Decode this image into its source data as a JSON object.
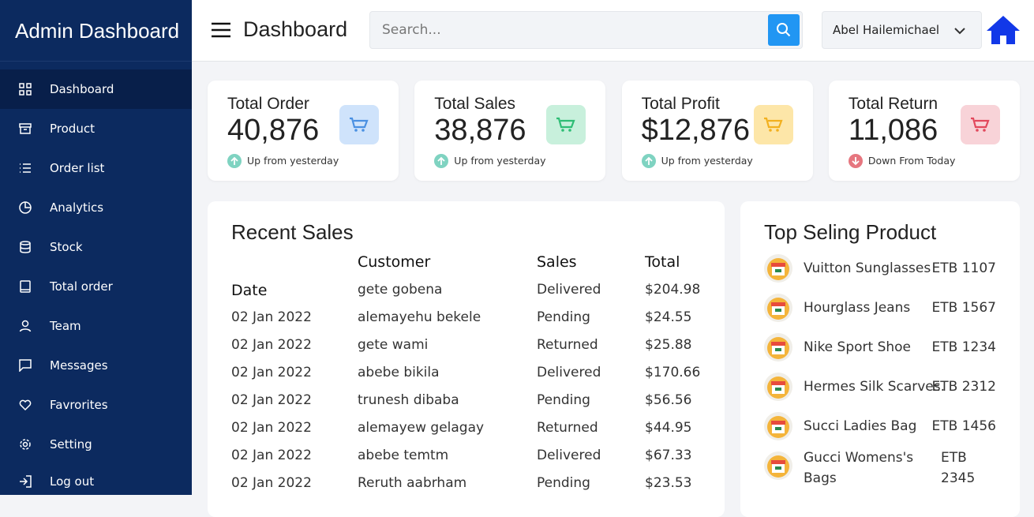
{
  "sidebar": {
    "brand": "Admin Dashboard",
    "items": [
      "Dashboard",
      "Product",
      "Order list",
      "Analytics",
      "Stock",
      "Total order",
      "Team",
      "Messages",
      "Favrorites",
      "Setting",
      "Log out"
    ]
  },
  "topbar": {
    "title": "Dashboard",
    "search_placeholder": "Search...",
    "user": "Abel Hailemichael"
  },
  "cards": [
    {
      "label": "Total Order",
      "value": "40,876",
      "note": "Up from yesterday",
      "trend": "up",
      "color": "#cfe3fb",
      "icon": "#4a90e2"
    },
    {
      "label": "Total Sales",
      "value": "38,876",
      "note": "Up from yesterday",
      "trend": "up",
      "color": "#c8f0dc",
      "icon": "#2ebd75"
    },
    {
      "label": "Total Profit",
      "value": "$12,876",
      "note": "Up from yesterday",
      "trend": "up",
      "color": "#fde6a8",
      "icon": "#f2b01e"
    },
    {
      "label": "Total Return",
      "value": "11,086",
      "note": "Down From Today",
      "trend": "down",
      "color": "#f8d3d8",
      "icon": "#e2485c"
    }
  ],
  "recent_sales": {
    "title": "Recent Sales",
    "columns": [
      "Customer",
      "Sales",
      "Total"
    ],
    "rows": [
      [
        "Date",
        "gete gobena",
        "Delivered",
        "$204.98"
      ],
      [
        "02 Jan 2022",
        "alemayehu bekele",
        "Pending",
        "$24.55"
      ],
      [
        "02 Jan 2022",
        "gete wami",
        "Returned",
        "$25.88"
      ],
      [
        "02 Jan 2022",
        "abebe bikila",
        "Delivered",
        "$170.66"
      ],
      [
        "02 Jan 2022",
        "trunesh dibaba",
        "Pending",
        "$56.56"
      ],
      [
        "02 Jan 2022",
        "alemayew gelagay",
        "Returned",
        "$44.95"
      ],
      [
        "02 Jan 2022",
        "abebe temtm",
        "Delivered",
        "$67.33"
      ],
      [
        "02 Jan 2022",
        "Reruth aabrham",
        "Pending",
        "$23.53"
      ]
    ]
  },
  "top_products": {
    "title": "Top Seling Product",
    "items": [
      {
        "name": "Vuitton Sunglasses",
        "price": "ETB 1107"
      },
      {
        "name": "Hourglass Jeans",
        "price": "ETB 1567"
      },
      {
        "name": "Nike Sport Shoe",
        "price": "ETB 1234"
      },
      {
        "name": "Hermes Silk Scarves.",
        "price": "ETB 2312"
      },
      {
        "name": "Succi Ladies Bag",
        "price": "ETB 1456"
      },
      {
        "name": "Gucci Womens's Bags",
        "price": "ETB 2345"
      }
    ]
  }
}
